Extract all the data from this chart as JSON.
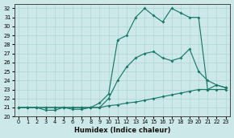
{
  "xlabel": "Humidex (Indice chaleur)",
  "bg_color": "#cce8e8",
  "line_color": "#1a7a6a",
  "grid_color": "#aed4d4",
  "ylim": [
    20,
    32.5
  ],
  "xlim": [
    -0.5,
    23.5
  ],
  "yticks": [
    20,
    21,
    22,
    23,
    24,
    25,
    26,
    27,
    28,
    29,
    30,
    31,
    32
  ],
  "xticks": [
    0,
    1,
    2,
    3,
    4,
    5,
    6,
    7,
    8,
    9,
    10,
    11,
    12,
    13,
    14,
    15,
    16,
    17,
    18,
    19,
    20,
    21,
    22,
    23
  ],
  "line1_y": [
    21.0,
    21.0,
    21.0,
    20.7,
    20.7,
    21.0,
    20.8,
    20.8,
    21.0,
    21.0,
    21.2,
    21.3,
    21.5,
    21.6,
    21.8,
    22.0,
    22.2,
    22.4,
    22.6,
    22.8,
    23.0,
    23.0,
    23.0,
    23.0
  ],
  "line2_y": [
    21.0,
    21.0,
    21.0,
    21.0,
    21.0,
    21.0,
    21.0,
    21.0,
    21.0,
    21.0,
    22.0,
    24.0,
    25.5,
    26.5,
    27.0,
    27.2,
    26.5,
    26.2,
    26.5,
    27.5,
    25.0,
    24.0,
    23.5,
    23.2
  ],
  "line3_y": [
    21.0,
    21.0,
    21.0,
    21.0,
    21.0,
    21.0,
    21.0,
    21.0,
    21.0,
    21.5,
    22.5,
    28.5,
    29.0,
    31.0,
    32.0,
    31.2,
    30.5,
    32.0,
    31.5,
    31.0,
    31.0,
    23.0,
    23.5,
    23.2
  ]
}
